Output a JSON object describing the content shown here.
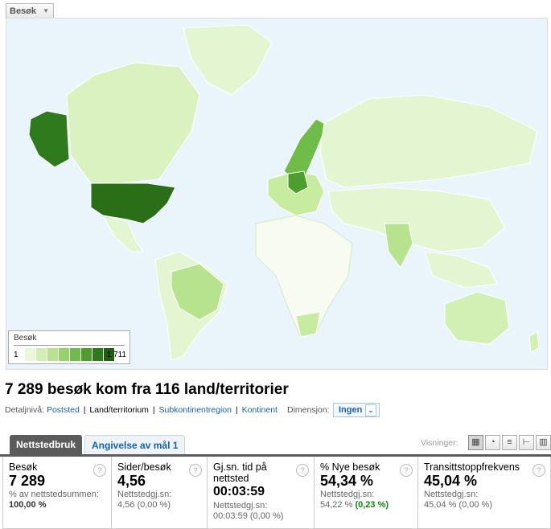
{
  "metric_selector": {
    "label": "Besøk"
  },
  "map": {
    "legend": {
      "title": "Besøk",
      "min": "1",
      "max": "1 711",
      "ramp": [
        "#eaf8d8",
        "#d3f0b4",
        "#b7e38e",
        "#95d36a",
        "#6fbd48",
        "#4c9e2f",
        "#2f7a1c",
        "#1f5e13"
      ]
    },
    "colors": {
      "ocean": "#eaf4fb",
      "low": "#e4f5d2",
      "mid": "#c8ec9f",
      "high": "#9fd878",
      "top": "#2f7a1c",
      "verylow": "#f7fbf2"
    }
  },
  "headline": "7 289 besøk kom fra 116 land/territorier",
  "detail": {
    "label": "Detaljnivå:",
    "levels": [
      "Poststed",
      "Land/territorium",
      "Subkontinentregion",
      "Kontinent"
    ],
    "dimension_label": "Dimensjon:",
    "dimension_value": "Ingen"
  },
  "tabs": [
    "Nettstedbruk",
    "Angivelse av mål 1"
  ],
  "visninger_label": "Visninger:",
  "view_icons": [
    "table-view-icon",
    "pie-view-icon",
    "performance-view-icon",
    "comparison-view-icon",
    "pivot-view-icon"
  ],
  "metrics": [
    {
      "name": "Besøk",
      "value": "7 289",
      "sub": "% av nettstedsummen:",
      "subval": "100,00 %"
    },
    {
      "name": "Sider/besøk",
      "value": "4,56",
      "sub": "Nettstedgj.sn:",
      "subval": "4,56 (0,00 %)"
    },
    {
      "name": "Gj.sn. tid på nettsted",
      "value": "00:03:59",
      "sub": "Nettstedgj.sn:",
      "subval": "00:03:59 (0,00 %)"
    },
    {
      "name": "% Nye besøk",
      "value": "54,34 %",
      "sub": "Nettstedgj.sn:",
      "subval": "54,22 %",
      "subdelta": "(0,23 %)"
    },
    {
      "name": "Transittstoppfrekvens",
      "value": "45,04 %",
      "sub": "Nettstedgj.sn:",
      "subval": "45,04 % (0,00 %)"
    }
  ]
}
